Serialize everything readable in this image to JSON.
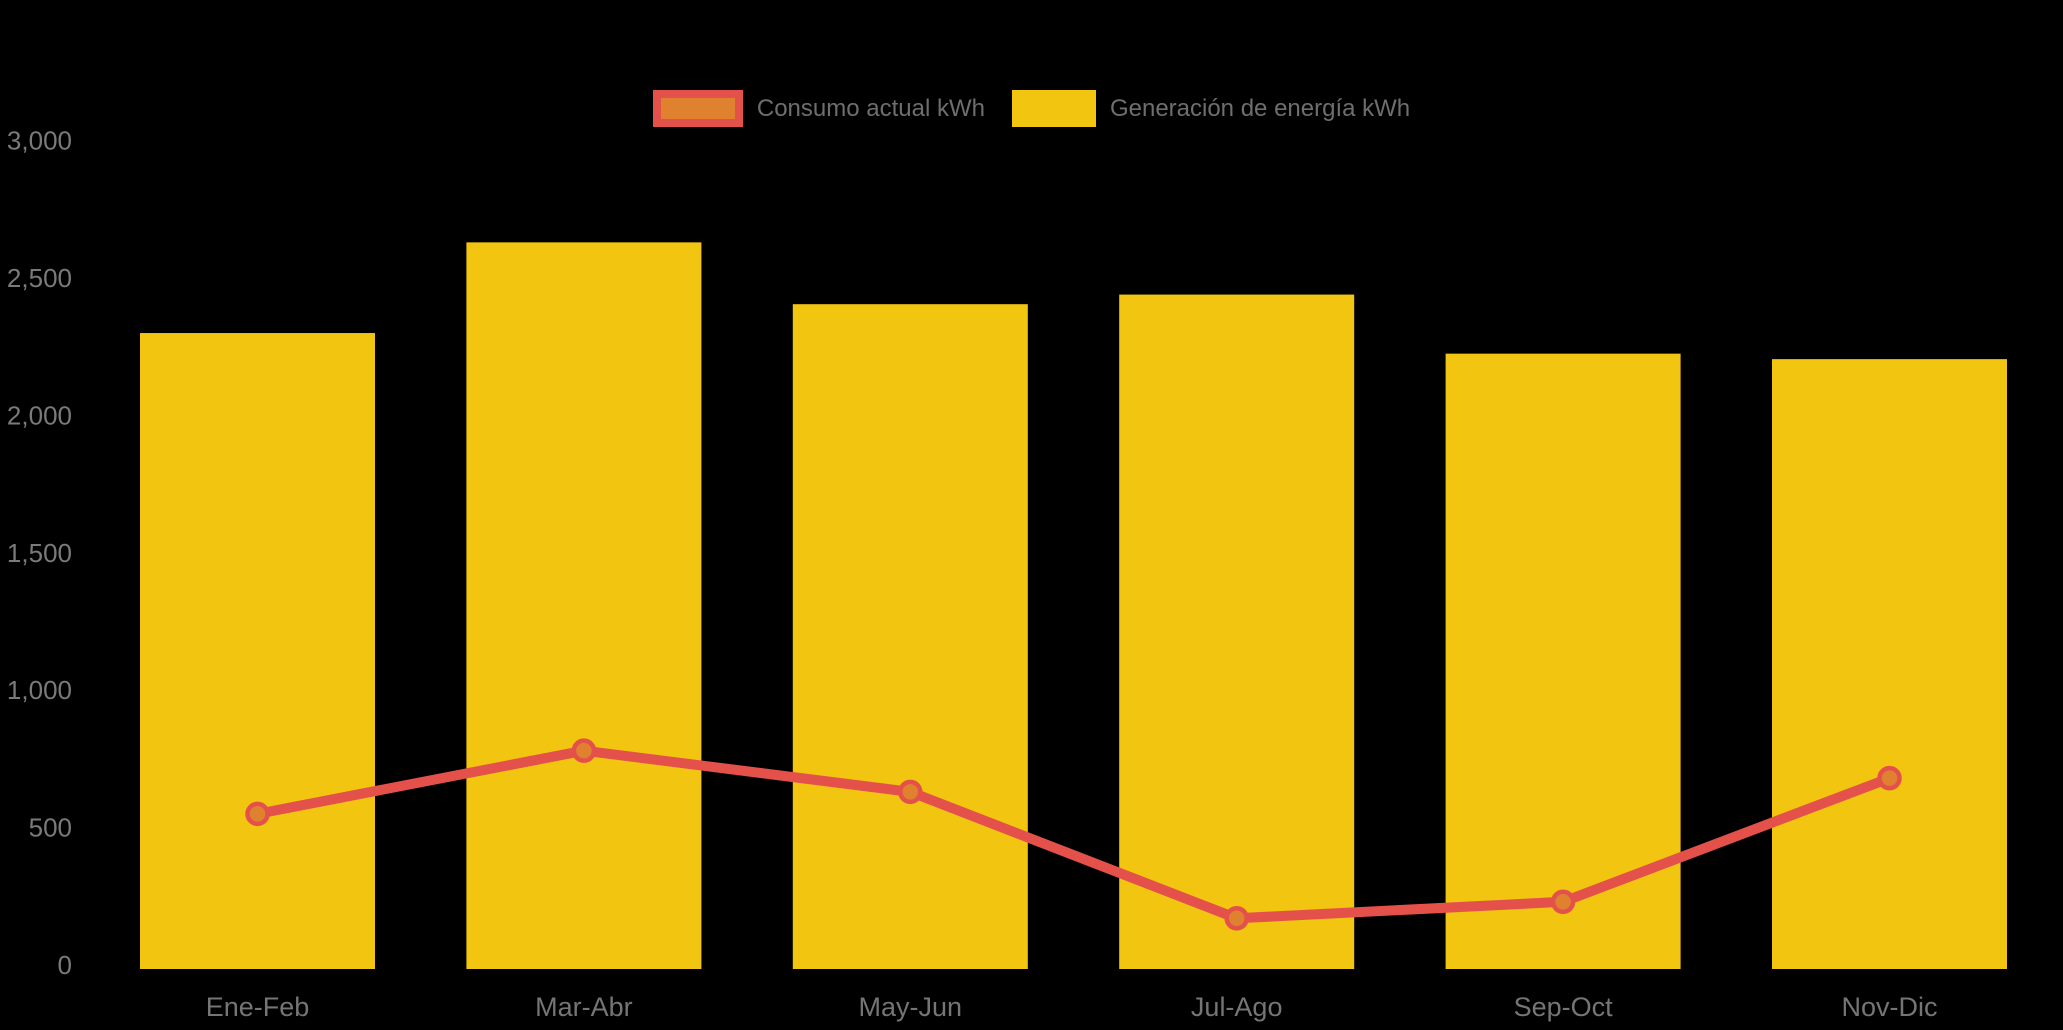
{
  "legend": {
    "text_color": "#6E6E6E",
    "items": [
      {
        "label": "Consumo actual kWh",
        "swatch_fill": "#E0812F",
        "swatch_border": "#E4514B"
      },
      {
        "label": "Generación de energía kWh",
        "swatch_fill": "#F2C511",
        "swatch_border": "#F2C511"
      }
    ]
  },
  "chart_data": {
    "type": "bar+line",
    "title": "",
    "xlabel": "",
    "ylabel": "",
    "background": "#000000",
    "grid": false,
    "legend_position": "top-center",
    "categories": [
      "Ene-Feb",
      "Mar-Abr",
      "May-Jun",
      "Jul-Ago",
      "Sep-Oct",
      "Nov-Dic"
    ],
    "series": [
      {
        "name": "Generación de energía kWh",
        "type": "bar",
        "color": "#F2C511",
        "values": [
          2300,
          2630,
          2405,
          2440,
          2225,
          2205
        ]
      },
      {
        "name": "Consumo actual kWh",
        "type": "line",
        "color": "#E4514B",
        "marker_fill": "#E0812F",
        "marker_stroke": "#E4514B",
        "values": [
          550,
          780,
          630,
          170,
          230,
          680
        ]
      }
    ],
    "ylim": [
      0,
      3000
    ],
    "yticks": [
      0,
      500,
      1000,
      1500,
      2000,
      2500,
      3000
    ],
    "ytick_labels": [
      "0",
      "500",
      "1,000",
      "1,500",
      "2,000",
      "2,500",
      "3,000"
    ],
    "ytick_color": "#7A7A7A",
    "xtick_color": "#757575"
  }
}
